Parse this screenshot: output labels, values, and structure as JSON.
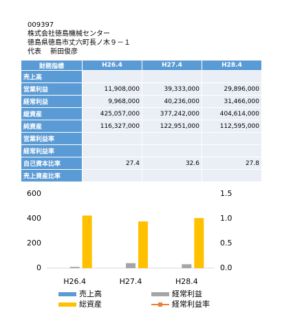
{
  "header": {
    "lines": [
      "009397",
      "株式会社徳島機械センター",
      "徳島県徳島市丈六町長ノ木９－１",
      "代表　 新田俊彦"
    ]
  },
  "table": {
    "columns": [
      "財務指標",
      "H26.4",
      "H27.4",
      "H28.4"
    ],
    "rows": [
      [
        "売上高",
        null,
        null,
        null
      ],
      [
        "営業利益",
        "11,908,000",
        "39,333,000",
        "29,896,000"
      ],
      [
        "経常利益",
        "9,968,000",
        "40,236,000",
        "31,466,000"
      ],
      [
        "総資産",
        "425,057,000",
        "377,242,000",
        "404,614,000"
      ],
      [
        "純資産",
        "116,327,000",
        "122,951,000",
        "112,595,000"
      ],
      [
        "営業利益率",
        null,
        null,
        null
      ],
      [
        "経常利益率",
        null,
        null,
        null
      ],
      [
        "自己資本比率",
        "27.4",
        "32.6",
        "27.8"
      ],
      [
        "売上資産比率",
        null,
        null,
        null
      ]
    ]
  },
  "chart_data": {
    "type": "bar",
    "categories": [
      "H26.4",
      "H27.4",
      "H28.4"
    ],
    "series": [
      {
        "name": "売上高",
        "color": "#5b9bd5",
        "values": [
          null,
          null,
          null
        ]
      },
      {
        "name": "経常利益",
        "color": "#a5a5a5",
        "values": [
          9.968,
          40.236,
          31.466
        ]
      },
      {
        "name": "総資産",
        "color": "#ffc000",
        "values": [
          425.057,
          377.242,
          404.614
        ]
      },
      {
        "name": "経常利益率",
        "color": "#ed7d31",
        "type": "line",
        "axis": "y2",
        "values": [
          null,
          null,
          null
        ]
      }
    ],
    "ylim": [
      0,
      600
    ],
    "yticks": [
      0,
      200,
      400,
      600
    ],
    "y2lim": [
      0,
      1.5
    ],
    "y2ticks": [
      {
        "value": 0,
        "label": "0.0"
      },
      {
        "value": 0.5,
        "label": "0.5"
      },
      {
        "value": 1,
        "label": "1.0"
      },
      {
        "value": 1.5,
        "label": "1.5"
      }
    ],
    "grid": false
  }
}
